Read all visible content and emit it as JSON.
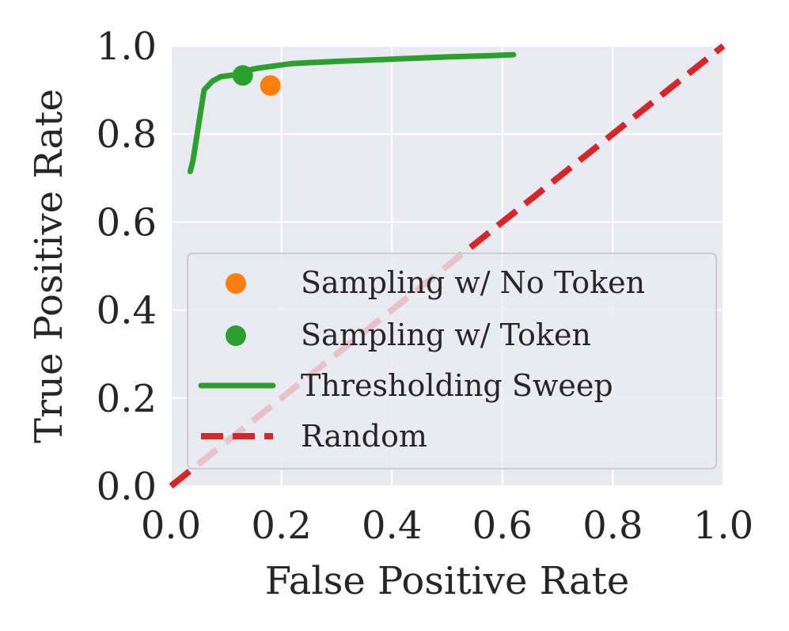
{
  "chart_data": {
    "type": "line",
    "title": "",
    "xlabel": "False Positive Rate",
    "ylabel": "True Positive Rate",
    "xlim": [
      0.0,
      1.0
    ],
    "ylim": [
      0.0,
      1.0
    ],
    "grid": true,
    "xticks": [
      0.0,
      0.2,
      0.4,
      0.6,
      0.8,
      1.0
    ],
    "yticks": [
      0.0,
      0.2,
      0.4,
      0.6,
      0.8,
      1.0
    ],
    "xtick_labels": [
      "0.0",
      "0.2",
      "0.4",
      "0.6",
      "0.8",
      "1.0"
    ],
    "ytick_labels": [
      "0.0",
      "0.2",
      "0.4",
      "0.6",
      "0.8",
      "1.0"
    ],
    "legend_position": "lower-right",
    "series": [
      {
        "name": "Sampling w/ No Token",
        "kind": "scatter",
        "color": "#ff7f0e",
        "points": [
          [
            0.18,
            0.91
          ]
        ]
      },
      {
        "name": "Sampling w/ Token",
        "kind": "scatter",
        "color": "#2ca02c",
        "points": [
          [
            0.13,
            0.933
          ]
        ]
      },
      {
        "name": "Thresholding Sweep",
        "kind": "line",
        "color": "#2ca02c",
        "points": [
          [
            0.035,
            0.715
          ],
          [
            0.04,
            0.74
          ],
          [
            0.06,
            0.9
          ],
          [
            0.075,
            0.92
          ],
          [
            0.09,
            0.93
          ],
          [
            0.12,
            0.935
          ],
          [
            0.14,
            0.945
          ],
          [
            0.16,
            0.95
          ],
          [
            0.22,
            0.96
          ],
          [
            0.3,
            0.965
          ],
          [
            0.4,
            0.97
          ],
          [
            0.5,
            0.975
          ],
          [
            0.58,
            0.978
          ],
          [
            0.62,
            0.98
          ]
        ]
      },
      {
        "name": "Random",
        "kind": "dashed-line",
        "color": "#d62728",
        "points": [
          [
            0.0,
            0.0
          ],
          [
            1.0,
            1.0
          ]
        ]
      }
    ]
  }
}
